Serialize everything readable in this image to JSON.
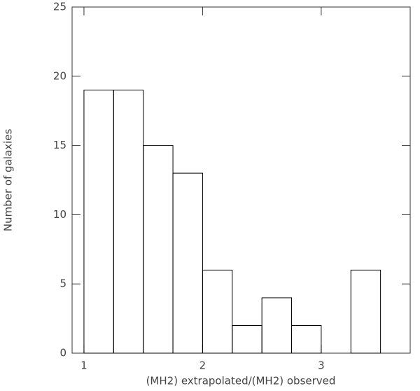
{
  "chart_data": {
    "type": "histogram",
    "xlabel": "(MH2) extrapolated/(MH2) observed",
    "ylabel": "Number of galaxies",
    "bins": [
      1.0,
      1.25,
      1.5,
      1.75,
      2.0,
      2.25,
      2.5,
      2.75,
      3.0,
      3.25,
      3.5
    ],
    "counts": [
      19,
      19,
      15,
      13,
      6,
      2,
      4,
      2,
      0,
      6
    ],
    "color": "#000000",
    "xlim": [
      0.9,
      3.75
    ],
    "xticks": [
      1,
      2,
      3
    ],
    "ylim": [
      0,
      25
    ],
    "yticks": [
      0,
      5,
      10,
      15,
      20,
      25
    ]
  }
}
